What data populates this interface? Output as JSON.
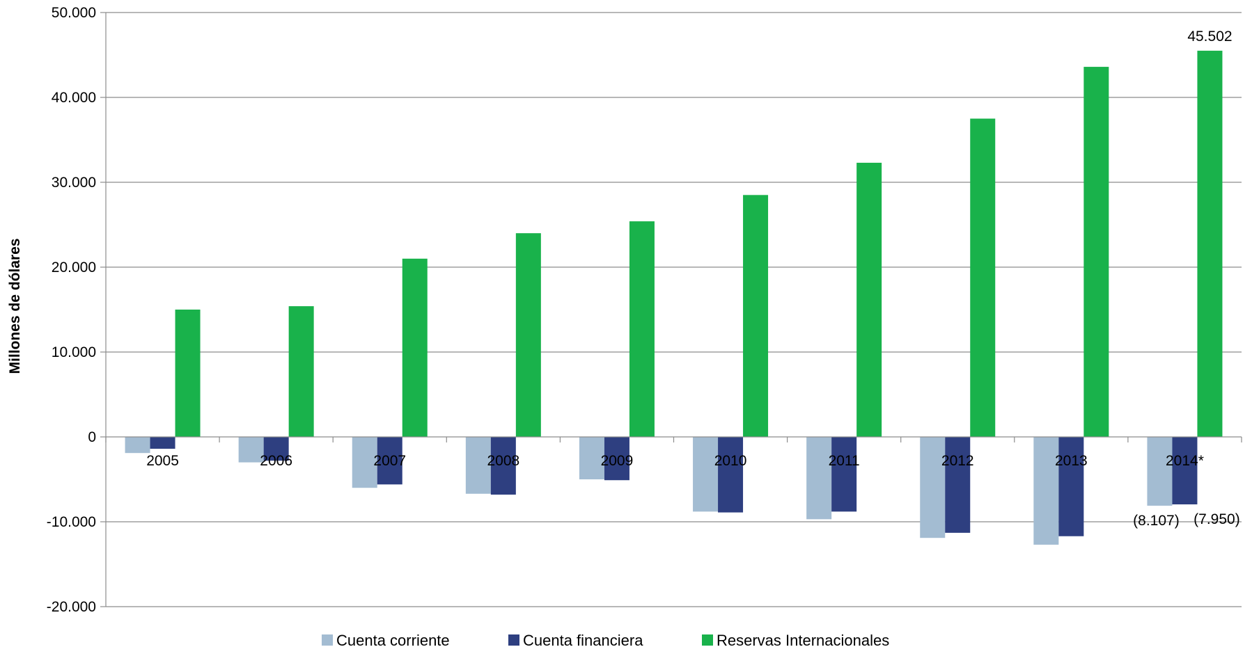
{
  "chart_data": {
    "type": "bar",
    "title": "",
    "xlabel": "",
    "ylabel": "Millones de dólares",
    "ylim": [
      -20000,
      50000
    ],
    "yticks": [
      50000,
      40000,
      30000,
      20000,
      10000,
      0,
      -10000,
      -20000
    ],
    "ytick_labels": [
      "50.000",
      "40.000",
      "30.000",
      "20.000",
      "10.000",
      "0",
      "-10.000",
      "-20.000"
    ],
    "grid": true,
    "legend_position": "bottom",
    "categories": [
      "2005",
      "2006",
      "2007",
      "2008",
      "2009",
      "2010",
      "2011",
      "2012",
      "2013",
      "2014*"
    ],
    "series": [
      {
        "name": "Cuenta corriente",
        "color": "#a3bcd2",
        "values": [
          -1900,
          -3000,
          -6000,
          -6700,
          -5000,
          -8800,
          -9700,
          -11900,
          -12700,
          -8107
        ]
      },
      {
        "name": "Cuenta financiera",
        "color": "#2e3f80",
        "values": [
          -1400,
          -2800,
          -5600,
          -6800,
          -5100,
          -8900,
          -8800,
          -11300,
          -11700,
          -7950
        ]
      },
      {
        "name": "Reservas Internacionales",
        "color": "#19b24b",
        "values": [
          15000,
          15400,
          21000,
          24000,
          25400,
          28500,
          32300,
          37500,
          43600,
          45502
        ]
      }
    ],
    "data_labels": [
      {
        "series": 0,
        "index": 9,
        "text": "(8.107)"
      },
      {
        "series": 1,
        "index": 9,
        "text": "(7.950)"
      },
      {
        "series": 2,
        "index": 9,
        "text": "45.502"
      }
    ]
  }
}
